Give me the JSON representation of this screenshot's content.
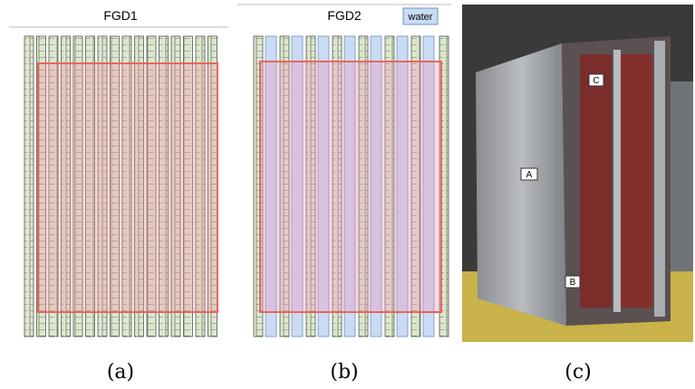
{
  "panels": [
    {
      "title": "FGD1",
      "caption": "(a)"
    },
    {
      "title": "FGD2",
      "legend": "water",
      "caption": "(b)"
    },
    {
      "caption": "(c)",
      "labels": [
        "A",
        "B",
        "C"
      ]
    }
  ]
}
